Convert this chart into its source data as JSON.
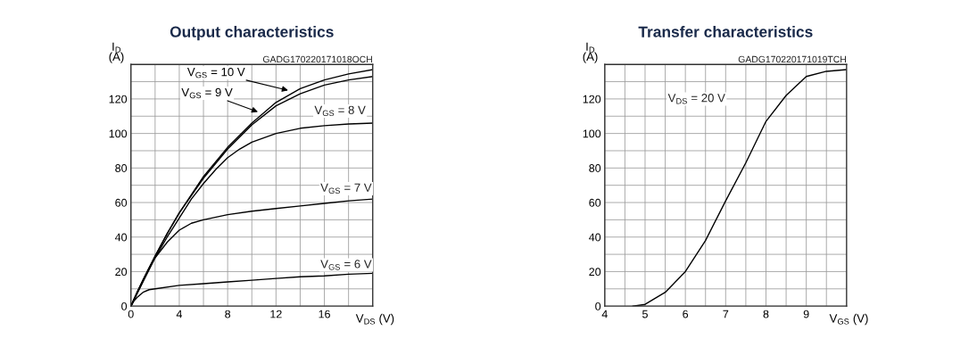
{
  "chart_data": [
    {
      "type": "line",
      "title": "Output characteristics",
      "xlabel": "V$_{DS}$ (V)",
      "ylabel": "I$_{D}$\n(A)",
      "xlim": [
        0,
        20
      ],
      "ylim": [
        0,
        140
      ],
      "xticks": [
        0,
        {
          "value": 2,
          "label": null
        },
        4,
        {
          "value": 6,
          "label": null
        },
        8,
        {
          "value": 10,
          "label": null
        },
        12,
        {
          "value": 14,
          "label": null
        },
        16,
        {
          "value": 18,
          "label": null
        }
      ],
      "yticks": [
        0,
        {
          "value": 10,
          "label": null
        },
        20,
        {
          "value": 30,
          "label": null
        },
        40,
        {
          "value": 50,
          "label": null
        },
        60,
        {
          "value": 70,
          "label": null
        },
        80,
        {
          "value": 90,
          "label": null
        },
        100,
        {
          "value": 110,
          "label": null
        },
        120,
        {
          "value": 130,
          "label": null
        }
      ],
      "grid": true,
      "marker": "none",
      "line_style": "solid",
      "series": [
        {
          "color": "#000000",
          "x": [
            0,
            1,
            2,
            3,
            4,
            6,
            8,
            10,
            12,
            14,
            16,
            18,
            20
          ],
          "values": [
            0,
            15,
            29,
            42,
            54,
            75,
            92,
            106,
            118,
            126,
            131,
            134.5,
            137
          ]
        },
        {
          "color": "#000000",
          "x": [
            0,
            1,
            2,
            3,
            4,
            6,
            8,
            10,
            12,
            14,
            16,
            18,
            20
          ],
          "values": [
            0,
            15,
            29,
            42,
            54,
            74,
            91,
            105,
            116,
            123,
            128,
            131,
            133
          ]
        },
        {
          "color": "#000000",
          "x": [
            0,
            1,
            2,
            3,
            4,
            5,
            6,
            7,
            8,
            9,
            10,
            12,
            14,
            16,
            18,
            20
          ],
          "values": [
            0,
            14,
            28,
            40,
            51,
            62,
            71,
            79,
            86,
            91,
            95,
            100,
            103,
            104.5,
            105.5,
            106
          ]
        },
        {
          "color": "#000000",
          "x": [
            0,
            0.5,
            1,
            1.5,
            2,
            3,
            4,
            5,
            6,
            8,
            10,
            12,
            14,
            16,
            18,
            20
          ],
          "values": [
            0,
            8,
            15,
            22,
            28,
            37,
            44,
            48,
            50,
            53,
            55,
            56.5,
            58,
            59.5,
            61,
            62
          ]
        },
        {
          "color": "#000000",
          "x": [
            0,
            0.25,
            0.5,
            1,
            1.5,
            2,
            4,
            6,
            8,
            10,
            12,
            14,
            16,
            18,
            20
          ],
          "values": [
            0,
            3,
            5,
            8,
            9.5,
            10,
            12,
            13,
            14,
            15,
            16,
            17,
            17.5,
            18.5,
            19
          ]
        }
      ],
      "annotations": [
        "GADG170220171018OCH",
        {
          "text": "V$_{GS}$ = 10 V",
          "x": 13,
          "y": 125
        },
        {
          "text": "V$_{GS}$ = 9 V",
          "x": 10.5,
          "y": 112.5
        },
        "V$_{GS}$ = 8 V",
        "V$_{GS}$ = 7 V",
        "V$_{GS}$ = 6 V"
      ]
    },
    {
      "type": "line",
      "title": "Transfer characteristics",
      "xlabel": "V$_{GS}$ (V)",
      "ylabel": "I$_{D}$\n(A)",
      "xlim": [
        4,
        10
      ],
      "ylim": [
        0,
        140
      ],
      "xticks": [
        4,
        {
          "value": 4.5,
          "label": null
        },
        5,
        {
          "value": 5.5,
          "label": null
        },
        6,
        {
          "value": 6.5,
          "label": null
        },
        7,
        {
          "value": 7.5,
          "label": null
        },
        8,
        {
          "value": 8.5,
          "label": null
        },
        9,
        {
          "value": 9.5,
          "label": null
        }
      ],
      "yticks": [
        0,
        {
          "value": 10,
          "label": null
        },
        20,
        {
          "value": 30,
          "label": null
        },
        40,
        {
          "value": 50,
          "label": null
        },
        60,
        {
          "value": 70,
          "label": null
        },
        80,
        {
          "value": 90,
          "label": null
        },
        100,
        {
          "value": 110,
          "label": null
        },
        120,
        {
          "value": 130,
          "label": null
        }
      ],
      "grid": true,
      "marker": "none",
      "line_style": "solid",
      "series": [
        {
          "color": "#000000",
          "x": [
            4.7,
            5,
            5.5,
            6,
            6.5,
            7,
            7.5,
            8,
            8.5,
            9,
            9.5,
            10
          ],
          "values": [
            0,
            1,
            8,
            20,
            38,
            61,
            83,
            107,
            122,
            133,
            136,
            137
          ]
        }
      ],
      "annotations": [
        "GADG170220171019TCH",
        "V$_{DS}$ = 20 V"
      ]
    }
  ]
}
